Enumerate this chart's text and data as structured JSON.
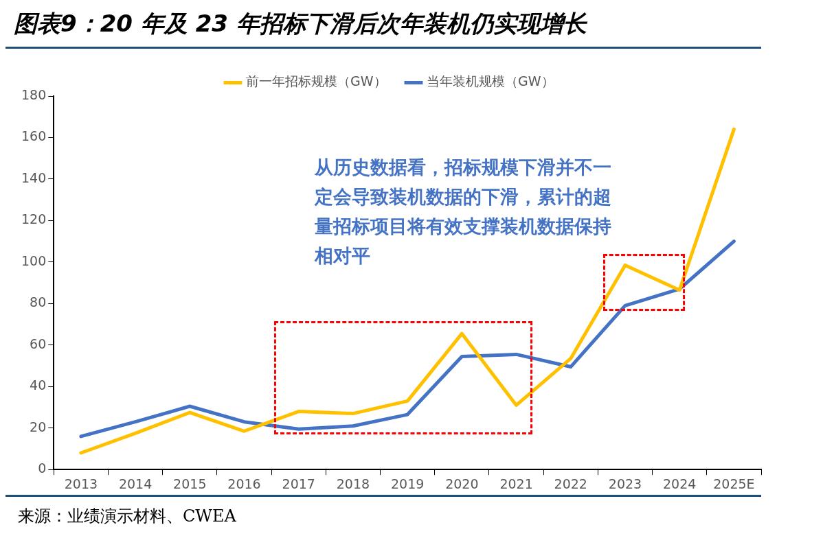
{
  "chart_data": {
    "type": "line",
    "title": "图表9：20 年及 23 年招标下滑后次年装机仍实现增长",
    "categories": [
      "2013",
      "2014",
      "2015",
      "2016",
      "2017",
      "2018",
      "2019",
      "2020",
      "2021",
      "2022",
      "2023",
      "2024",
      "2025E"
    ],
    "series": [
      {
        "name": "前一年招标规模（GW）",
        "color": "#ffc000",
        "values": [
          8,
          17.5,
          27.5,
          18.5,
          28,
          27,
          33,
          65.5,
          31,
          53.5,
          98.5,
          86.5,
          164
        ]
      },
      {
        "name": "当年装机规模（GW）",
        "color": "#4472c4",
        "values": [
          16,
          23,
          30.5,
          23,
          19.5,
          21,
          26.5,
          54.5,
          55.5,
          49.5,
          79,
          87,
          110
        ]
      }
    ],
    "ylim": [
      0,
      180
    ],
    "yticks": [
      0,
      20,
      40,
      60,
      80,
      100,
      120,
      140,
      160,
      180
    ],
    "grid": false,
    "legend": "top",
    "marker": "none",
    "line_style": "solid",
    "annotations": [
      "从历史数据看，招标规模下滑并不一定会导致装机数据的下滑，累计的超量招标项目将有效支撑装机数据保持相对平",
      "来源：业绩演示材料、CWEA"
    ]
  }
}
